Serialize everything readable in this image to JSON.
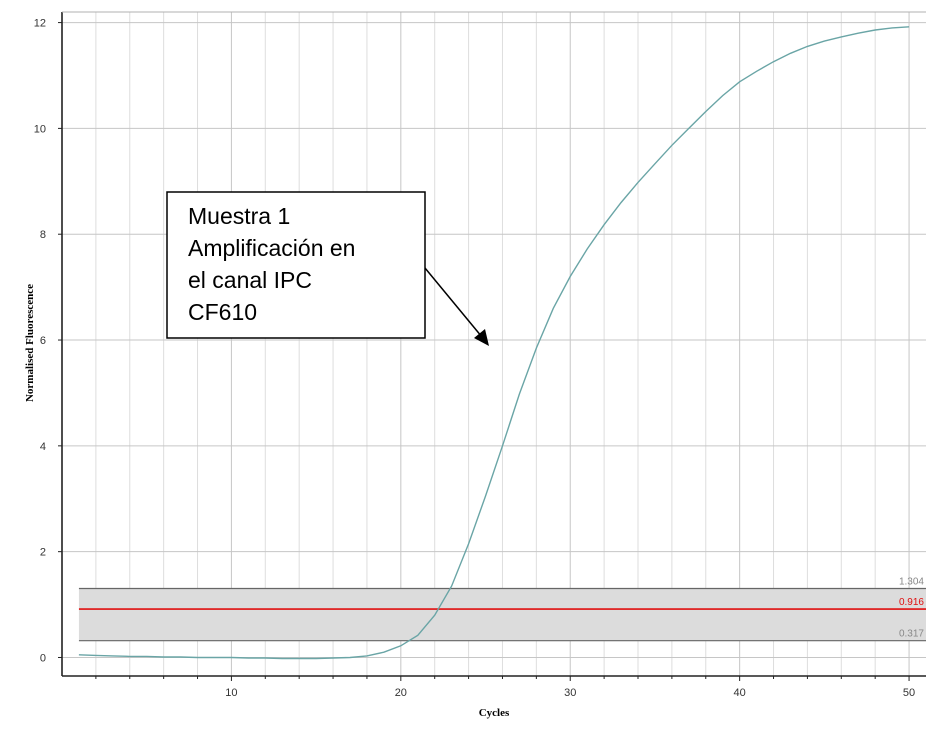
{
  "chart_data": {
    "type": "line",
    "title": "",
    "xlabel": "Cycles",
    "ylabel": "Normalised Fluorescence",
    "xlim": [
      0,
      51
    ],
    "ylim": [
      -0.35,
      12.2
    ],
    "x_ticks": [
      10,
      20,
      30,
      40,
      50
    ],
    "y_ticks": [
      0,
      2,
      4,
      6,
      8,
      10,
      12
    ],
    "x_minor_step": 2,
    "grid": true,
    "series": [
      {
        "color": "#6aa5a6",
        "x": [
          1,
          2,
          3,
          4,
          5,
          6,
          7,
          8,
          9,
          10,
          11,
          12,
          13,
          14,
          15,
          16,
          17,
          18,
          19,
          20,
          21,
          22,
          23,
          24,
          25,
          26,
          27,
          28,
          29,
          30,
          31,
          32,
          33,
          34,
          35,
          36,
          37,
          38,
          39,
          40,
          41,
          42,
          43,
          44,
          45,
          46,
          47,
          48,
          49,
          50
        ],
        "y": [
          0.05,
          0.04,
          0.03,
          0.02,
          0.02,
          0.01,
          0.01,
          0.0,
          0.0,
          0.0,
          -0.01,
          -0.01,
          -0.02,
          -0.02,
          -0.02,
          -0.01,
          0.0,
          0.03,
          0.1,
          0.22,
          0.42,
          0.8,
          1.35,
          2.15,
          3.05,
          4.0,
          4.98,
          5.85,
          6.6,
          7.2,
          7.72,
          8.18,
          8.6,
          8.98,
          9.33,
          9.68,
          10.0,
          10.32,
          10.62,
          10.88,
          11.08,
          11.26,
          11.42,
          11.55,
          11.65,
          11.73,
          11.8,
          11.86,
          11.9,
          11.92
        ]
      }
    ],
    "thresholds": [
      {
        "value": 1.304,
        "label": "1.304",
        "color": "#666666",
        "label_color": "#888888"
      },
      {
        "value": 0.916,
        "label": "0.916",
        "color": "#e01010",
        "label_color": "#e01010"
      },
      {
        "value": 0.317,
        "label": "0.317",
        "color": "#666666",
        "label_color": "#888888"
      }
    ],
    "threshold_band": {
      "from": 0.317,
      "to": 1.304,
      "color": "#dcdcdc"
    },
    "annotation": {
      "lines": [
        "Muestra 1",
        "Amplificación en",
        "el canal IPC",
        "CF610"
      ]
    }
  }
}
